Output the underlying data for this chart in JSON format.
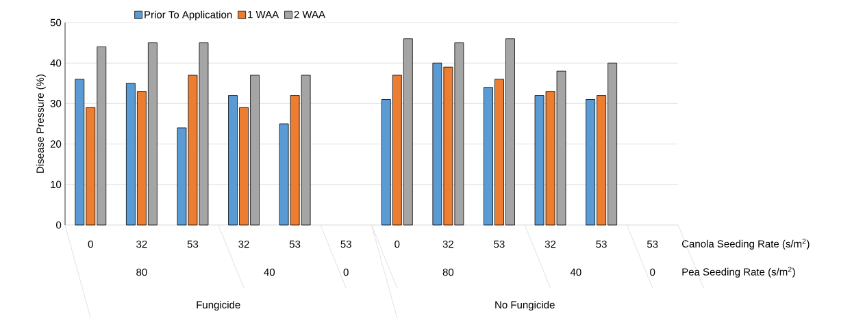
{
  "chart_data": {
    "type": "bar",
    "ylabel": "Disease Pressure (%)",
    "xlabel": "Canola Seeding Rate (s/m$^{2}$)",
    "categories": [
      "0",
      "32",
      "53",
      "32",
      "53",
      "53",
      "0",
      "32",
      "53",
      "32",
      "53",
      "53"
    ],
    "series": [
      {
        "name": "Prior To Application",
        "color": "#5b9bd5",
        "values": [
          36,
          35,
          24,
          32,
          25,
          null,
          31,
          40,
          34,
          32,
          31,
          null
        ]
      },
      {
        "name": "1 WAA",
        "color": "#ed7d31",
        "values": [
          29,
          33,
          37,
          29,
          32,
          null,
          37,
          39,
          36,
          33,
          32,
          null
        ]
      },
      {
        "name": "2 WAA",
        "color": "#a5a5a5",
        "values": [
          44,
          45,
          45,
          37,
          37,
          null,
          46,
          45,
          46,
          38,
          40,
          null
        ]
      }
    ],
    "annotations": [
      "80",
      "40",
      "0",
      "80",
      "40",
      "0",
      "Pea Seeding Rate (s/m$^{2}$)",
      "Fungicide",
      "No Fungicide"
    ],
    "ylim": [
      0,
      50
    ],
    "yticks": [
      0,
      10,
      20,
      30,
      40,
      50
    ],
    "grid": "y",
    "legend": "top"
  }
}
